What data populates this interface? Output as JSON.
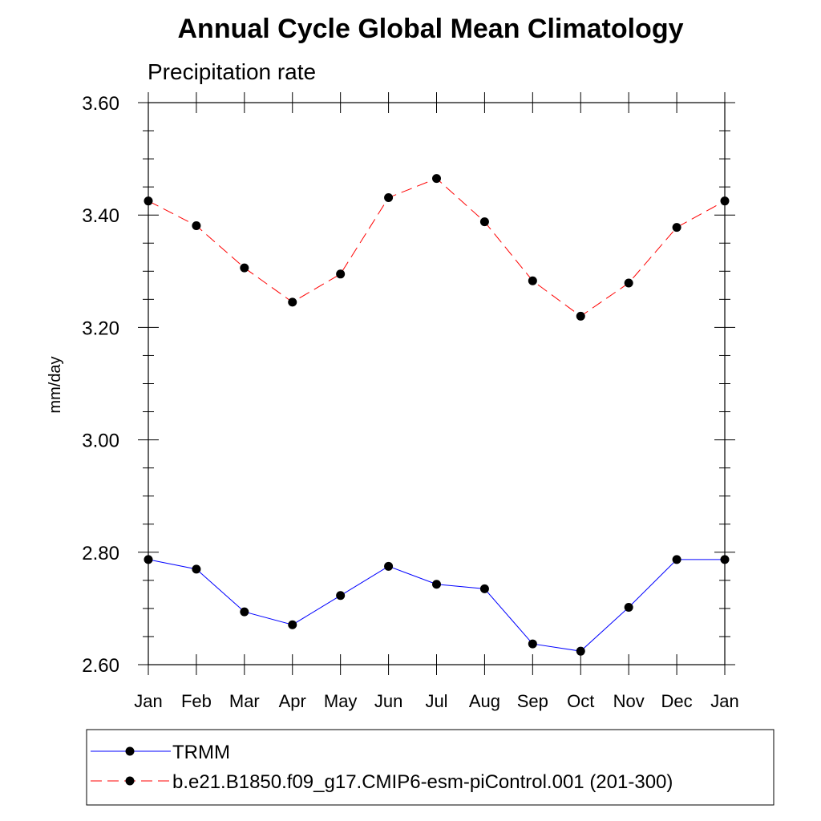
{
  "chart_data": {
    "type": "line",
    "title": "Annual Cycle Global Mean Climatology",
    "subtitle": "Precipitation rate",
    "ylabel": "mm/day",
    "xlabel": "",
    "categories": [
      "Jan",
      "Feb",
      "Mar",
      "Apr",
      "May",
      "Jun",
      "Jul",
      "Aug",
      "Sep",
      "Oct",
      "Nov",
      "Dec",
      "Jan"
    ],
    "ylim": [
      2.6,
      3.6
    ],
    "yticks": [
      2.6,
      2.8,
      3.0,
      3.2,
      3.4,
      3.6
    ],
    "ytick_labels": [
      "2.60",
      "2.80",
      "3.00",
      "3.20",
      "3.40",
      "3.60"
    ],
    "yminor_step": 0.05,
    "series": [
      {
        "name": "TRMM",
        "color": "#0000ff",
        "dash": "solid",
        "marker": "filled-circle",
        "values": [
          2.787,
          2.77,
          2.694,
          2.671,
          2.723,
          2.775,
          2.743,
          2.735,
          2.637,
          2.624,
          2.702,
          2.787,
          2.787
        ]
      },
      {
        "name": "b.e21.B1850.f09_g17.CMIP6-esm-piControl.001 (201-300)",
        "color": "#ff0000",
        "dash": "dashed",
        "marker": "filled-circle",
        "values": [
          3.425,
          3.381,
          3.306,
          3.245,
          3.295,
          3.431,
          3.465,
          3.388,
          3.283,
          3.22,
          3.279,
          3.378,
          3.425
        ]
      }
    ],
    "legend_position": "bottom"
  }
}
